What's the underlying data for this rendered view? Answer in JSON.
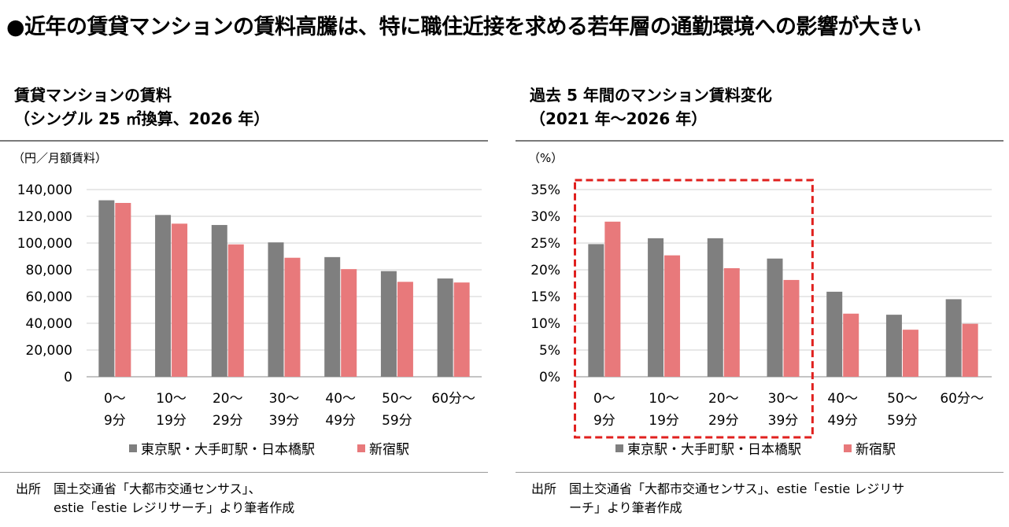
{
  "headline": "●近年の賃貸マンションの賃料高騰は、特に職住近接を求める若年層の通勤環境への影響が大きい",
  "colors": {
    "tokyo": "#7f7f7f",
    "shinjuku": "#e8797b",
    "highlight": "#e0201e",
    "grid": "#d0d0d0"
  },
  "chart_data": [
    {
      "type": "bar",
      "title_line1": "賃貸マンションの賃料",
      "title_line2": "（シングル 25 ㎡換算、2026 年）",
      "unit_label": "（円／月額賃料）",
      "categories": [
        [
          "0〜",
          "9分"
        ],
        [
          "10〜",
          "19分"
        ],
        [
          "20〜",
          "29分"
        ],
        [
          "30〜",
          "39分"
        ],
        [
          "40〜",
          "49分"
        ],
        [
          "50〜",
          "59分"
        ],
        [
          "60分〜",
          ""
        ]
      ],
      "series": [
        {
          "name": "東京駅・大手町駅・日本橋駅",
          "values": [
            132000,
            121000,
            113500,
            100500,
            89500,
            79000,
            73500
          ]
        },
        {
          "name": "新宿駅",
          "values": [
            130000,
            114500,
            99000,
            89000,
            80500,
            71000,
            70500
          ]
        }
      ],
      "ylim": [
        0,
        140000
      ],
      "yticks": [
        "0",
        "20,000",
        "40,000",
        "60,000",
        "80,000",
        "100,000",
        "120,000",
        "140,000"
      ],
      "grid": true,
      "legend_position": "bottom",
      "source_label": "出所",
      "source_line1": "国土交通省「大都市交通センサス」、",
      "source_line2": "estie「estie レジリサーチ」より筆者作成"
    },
    {
      "type": "bar",
      "title_line1": "過去 5 年間のマンション賃料変化",
      "title_line2": "（2021 年〜2026 年）",
      "unit_label": "（%）",
      "categories": [
        [
          "0〜",
          "9分"
        ],
        [
          "10〜",
          "19分"
        ],
        [
          "20〜",
          "29分"
        ],
        [
          "30〜",
          "39分"
        ],
        [
          "40〜",
          "49分"
        ],
        [
          "50〜",
          "59分"
        ],
        [
          "60分〜",
          ""
        ]
      ],
      "series": [
        {
          "name": "東京駅・大手町駅・日本橋駅",
          "values": [
            24.8,
            25.9,
            25.9,
            22.1,
            15.9,
            11.6,
            14.5
          ]
        },
        {
          "name": "新宿駅",
          "values": [
            29.0,
            22.7,
            20.3,
            18.1,
            11.8,
            8.8,
            9.9
          ]
        }
      ],
      "ylim": [
        0,
        35
      ],
      "yticks": [
        "0%",
        "5%",
        "10%",
        "15%",
        "20%",
        "25%",
        "30%",
        "35%"
      ],
      "grid": true,
      "legend_position": "bottom",
      "highlight_categories": [
        0,
        3
      ],
      "source_label": "出所",
      "source_line1": "国土交通省「大都市交通センサス」、estie「estie レジリサ",
      "source_line2": "ーチ」より筆者作成"
    }
  ]
}
